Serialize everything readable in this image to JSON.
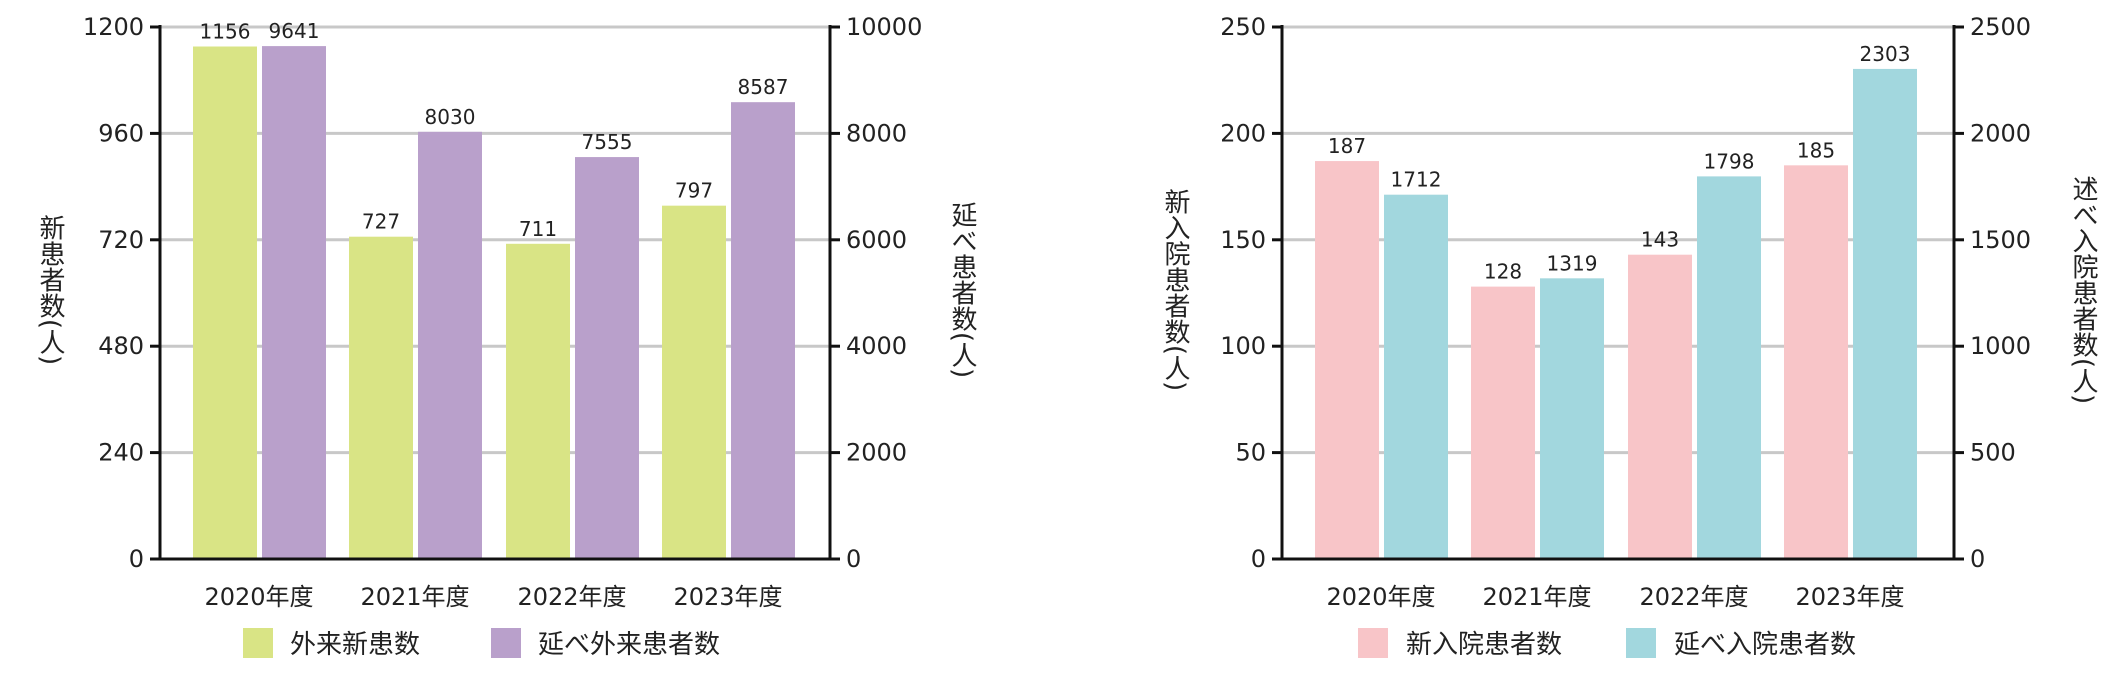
{
  "chart_data": [
    {
      "type": "bar",
      "categories": [
        "2020年度",
        "2021年度",
        "2022年度",
        "2023年度"
      ],
      "y_left": {
        "label": "新患者数(人)",
        "ticks": [
          "0",
          "240",
          "480",
          "720",
          "960",
          "1200"
        ],
        "lim": [
          0,
          1200
        ]
      },
      "y_right": {
        "label": "延べ患者数(人)",
        "ticks": [
          "0",
          "2000",
          "4000",
          "6000",
          "8000",
          "10000"
        ],
        "lim": [
          0,
          10000
        ]
      },
      "series": [
        {
          "name": "外来新患数",
          "axis": "left",
          "color": "#d9e485",
          "values": [
            1156,
            727,
            711,
            797
          ],
          "labels": [
            "1156",
            "727",
            "711",
            "797"
          ]
        },
        {
          "name": "延べ外来患者数",
          "axis": "right",
          "color": "#b9a0cb",
          "values": [
            9641,
            8030,
            7555,
            8587
          ],
          "labels": [
            "9641",
            "8030",
            "7555",
            "8587"
          ]
        }
      ],
      "grid": true,
      "legend": "bottom"
    },
    {
      "type": "bar",
      "categories": [
        "2020年度",
        "2021年度",
        "2022年度",
        "2023年度"
      ],
      "y_left": {
        "label": "新入院患者数(人)",
        "ticks": [
          "0",
          "50",
          "100",
          "150",
          "200",
          "250"
        ],
        "lim": [
          0,
          250
        ]
      },
      "y_right": {
        "label": "述べ入院患者数(人)",
        "ticks": [
          "0",
          "500",
          "1000",
          "1500",
          "2000",
          "2500"
        ],
        "lim": [
          0,
          2500
        ]
      },
      "series": [
        {
          "name": "新入院患者数",
          "axis": "left",
          "color": "#f8c5c8",
          "values": [
            187,
            128,
            143,
            185
          ],
          "labels": [
            "187",
            "128",
            "143",
            "185"
          ]
        },
        {
          "name": "延べ入院患者数",
          "axis": "right",
          "color": "#a2d7de",
          "values": [
            1712,
            1319,
            1798,
            2303
          ],
          "labels": [
            "1712",
            "1319",
            "1798",
            "2303"
          ]
        }
      ],
      "grid": true,
      "legend": "bottom"
    }
  ]
}
